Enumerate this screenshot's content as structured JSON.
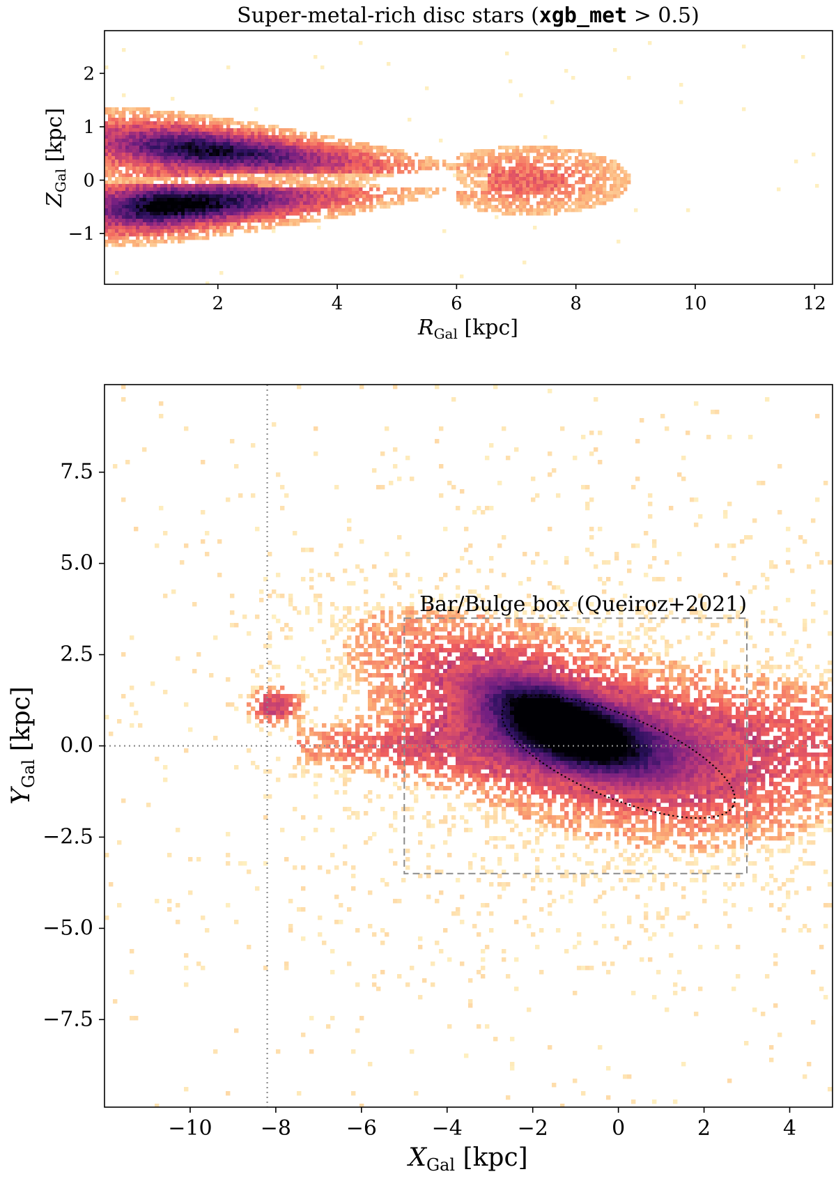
{
  "chart_data": [
    {
      "type": "heatmap",
      "title_prefix": "Super-metal-rich disc stars (",
      "title_code": "xgb_met",
      "title_suffix": " > 0.5)",
      "xlabel_main": "R",
      "xlabel_sub": "Gal",
      "xlabel_unit": " [kpc]",
      "ylabel_main": "Z",
      "ylabel_sub": "Gal",
      "ylabel_unit": " [kpc]",
      "xlim": [
        0.1,
        12.3
      ],
      "ylim": [
        -1.95,
        2.8
      ],
      "xticks": [
        2,
        4,
        6,
        8,
        10,
        12
      ],
      "xtick_labels": [
        "2",
        "4",
        "6",
        "8",
        "10",
        "12"
      ],
      "yticks": [
        2,
        1,
        0,
        -1
      ],
      "ytick_labels": [
        "2",
        "1",
        "0",
        "−1"
      ],
      "colormap": [
        "#fffccf",
        "#fcb37a",
        "#f1605d",
        "#b5367a",
        "#721f81",
        "#2c115f",
        "#000004"
      ],
      "density_components": [
        {
          "shape": "flared-wedge",
          "x_start": 0.1,
          "x_end": 7.0,
          "y_start": 0.72,
          "y_end": 0.08,
          "peak_x": 1.6,
          "peak_value": 0.85
        },
        {
          "shape": "flared-wedge",
          "x_start": 0.1,
          "x_end": 7.0,
          "y_start": -0.55,
          "y_end": -0.08,
          "peak_x": 1.0,
          "peak_value": 1.0
        },
        {
          "shape": "sparse-tail",
          "x_start": 6.0,
          "x_end": 9.5,
          "y_center": 0.0,
          "spread": 0.45
        }
      ]
    },
    {
      "type": "heatmap",
      "xlabel_main": "X",
      "xlabel_sub": "Gal",
      "xlabel_unit": " [kpc]",
      "ylabel_main": "Y",
      "ylabel_sub": "Gal",
      "ylabel_unit": " [kpc]",
      "xlim": [
        -12.0,
        5.0
      ],
      "ylim": [
        -9.9,
        9.9
      ],
      "xticks": [
        -10,
        -8,
        -6,
        -4,
        -2,
        0,
        2,
        4
      ],
      "xtick_labels": [
        "−10",
        "−8",
        "−6",
        "−4",
        "−2",
        "0",
        "2",
        "4"
      ],
      "yticks": [
        7.5,
        5.0,
        2.5,
        0.0,
        -2.5,
        -5.0,
        -7.5
      ],
      "ytick_labels": [
        "7.5",
        "5.0",
        "2.5",
        "0.0",
        "−2.5",
        "−5.0",
        "−7.5"
      ],
      "sun_x": -8.2,
      "sun_line_y": 0.0,
      "box_label": "Bar/Bulge box (Queiroz+2021)",
      "box": {
        "x": [
          -5.0,
          3.0
        ],
        "y": [
          -3.5,
          3.5
        ]
      },
      "bar_ellipse": {
        "center": [
          0.0,
          -0.3
        ],
        "semi_major": 3.0,
        "semi_minor": 1.1,
        "angle_deg": -27
      },
      "density_components": [
        {
          "shape": "bar-core",
          "center": [
            -1.3,
            0.6
          ],
          "peak_value": 1.0
        },
        {
          "shape": "disc-band",
          "x_start": -7.5,
          "x_end": 5.0,
          "y_center": 0.0
        },
        {
          "shape": "clump",
          "center": [
            -8.0,
            1.1
          ],
          "peak_value": 0.35
        }
      ]
    }
  ]
}
